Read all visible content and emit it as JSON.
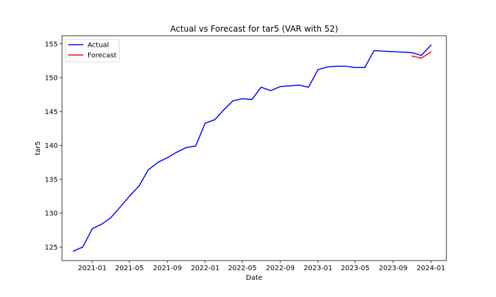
{
  "chart_data": {
    "type": "line",
    "title": "Actual vs Forecast for tar5 (VAR with 52)",
    "xlabel": "Date",
    "ylabel": "tar5",
    "xlim": [
      "2020-09-25",
      "2024-02-20"
    ],
    "ylim": [
      123.0,
      156.2
    ],
    "x_ticks": [
      "2021-01",
      "2021-05",
      "2021-09",
      "2022-01",
      "2022-05",
      "2022-09",
      "2023-01",
      "2023-05",
      "2023-09",
      "2024-01"
    ],
    "y_ticks": [
      125,
      130,
      135,
      140,
      145,
      150,
      155
    ],
    "grid": false,
    "legend_position": "top-left",
    "series": [
      {
        "name": "Actual",
        "color": "#0000ff",
        "points": [
          [
            "2020-11-01",
            124.4
          ],
          [
            "2020-12-01",
            125.0
          ],
          [
            "2021-01-01",
            127.7
          ],
          [
            "2021-02-01",
            128.4
          ],
          [
            "2021-03-01",
            129.3
          ],
          [
            "2021-04-01",
            130.9
          ],
          [
            "2021-05-01",
            132.5
          ],
          [
            "2021-06-01",
            134.0
          ],
          [
            "2021-07-01",
            136.4
          ],
          [
            "2021-08-01",
            137.5
          ],
          [
            "2021-09-01",
            138.2
          ],
          [
            "2021-10-01",
            139.0
          ],
          [
            "2021-11-01",
            139.7
          ],
          [
            "2021-12-01",
            139.9
          ],
          [
            "2022-01-01",
            143.3
          ],
          [
            "2022-02-01",
            143.8
          ],
          [
            "2022-03-01",
            145.2
          ],
          [
            "2022-04-01",
            146.6
          ],
          [
            "2022-05-01",
            146.9
          ],
          [
            "2022-06-01",
            146.8
          ],
          [
            "2022-07-01",
            148.6
          ],
          [
            "2022-08-01",
            148.1
          ],
          [
            "2022-09-01",
            148.7
          ],
          [
            "2022-10-01",
            148.8
          ],
          [
            "2022-11-01",
            148.9
          ],
          [
            "2022-12-01",
            148.6
          ],
          [
            "2023-01-01",
            151.2
          ],
          [
            "2023-02-01",
            151.6
          ],
          [
            "2023-03-01",
            151.7
          ],
          [
            "2023-04-01",
            151.7
          ],
          [
            "2023-05-01",
            151.5
          ],
          [
            "2023-06-01",
            151.5
          ],
          [
            "2023-07-01",
            154.0
          ],
          [
            "2023-11-01",
            153.7
          ],
          [
            "2023-12-01",
            153.3
          ],
          [
            "2024-01-01",
            154.8
          ]
        ]
      },
      {
        "name": "Forecast",
        "color": "#ff0000",
        "points": [
          [
            "2023-11-01",
            153.2
          ],
          [
            "2023-12-01",
            152.9
          ],
          [
            "2024-01-01",
            153.8
          ]
        ]
      }
    ]
  }
}
